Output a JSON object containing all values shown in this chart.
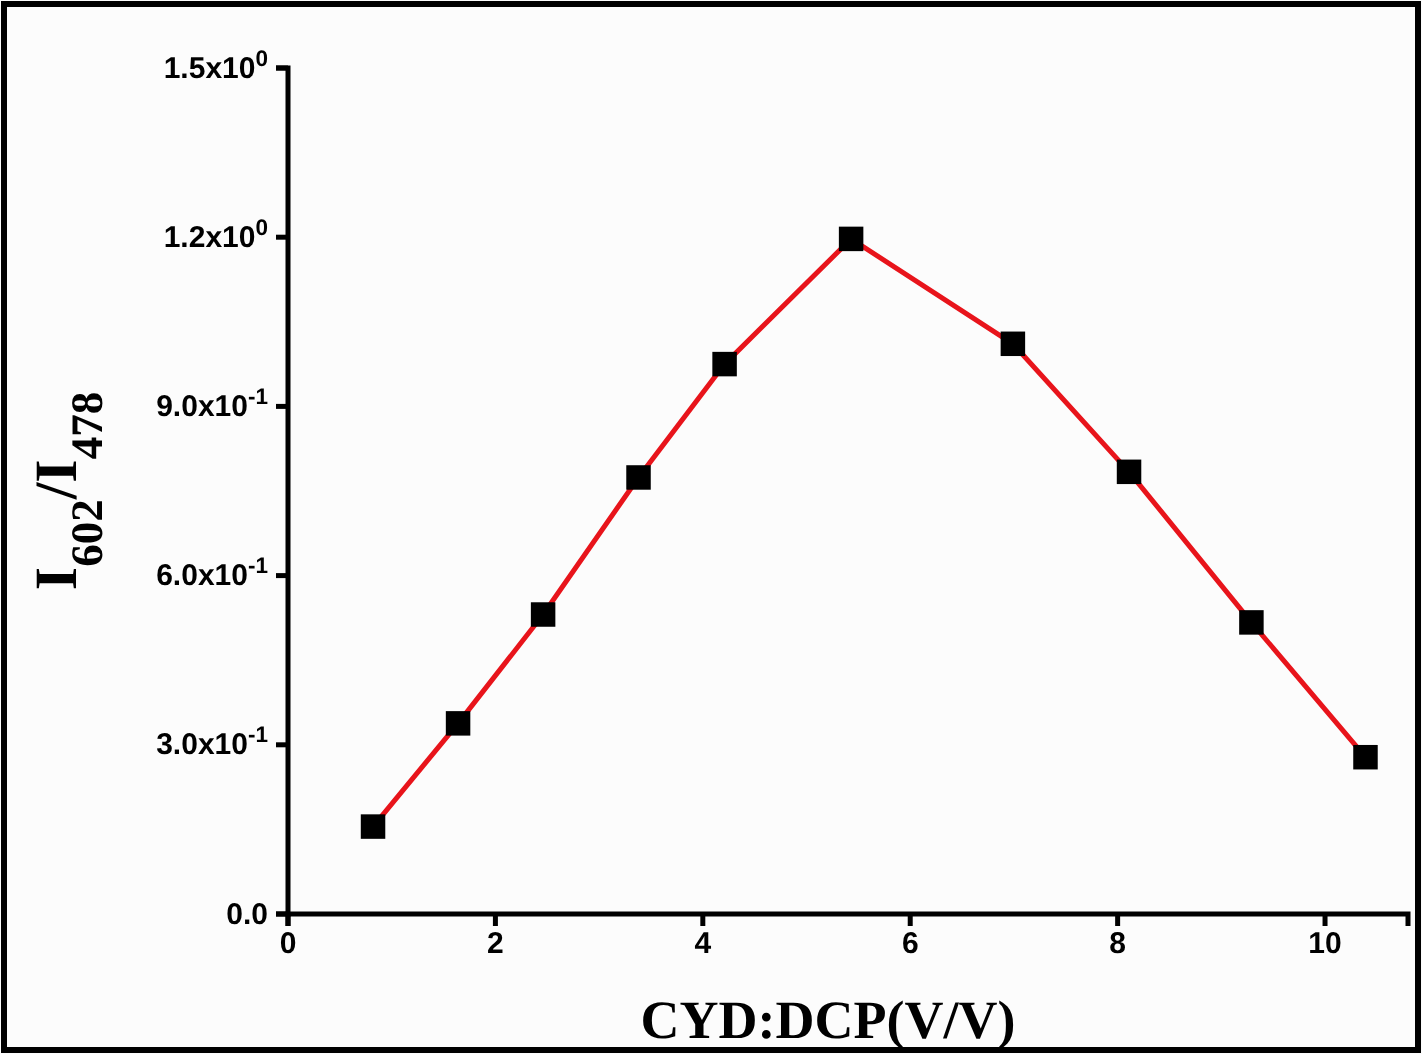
{
  "chart_data": {
    "type": "line",
    "xlabel": "CYD:DCP(V/V)",
    "ylabel": "I$_{602}$/I$_{478}$",
    "x": [
      0.82,
      1.64,
      2.46,
      3.38,
      4.21,
      5.43,
      6.99,
      8.11,
      9.29,
      10.39
    ],
    "series": [
      {
        "color": "#e8141b",
        "values": [
          0.155,
          0.338,
          0.531,
          0.774,
          0.975,
          1.197,
          1.011,
          0.784,
          0.517,
          0.278
        ]
      }
    ],
    "marker": "square",
    "line_style": "solid",
    "grid": false,
    "legend": false,
    "xlim": [
      0,
      10.8
    ],
    "xticks": [
      0,
      2,
      4,
      6,
      8,
      10
    ],
    "ylim": [
      0,
      1.5
    ],
    "yticks": [
      {
        "value": 0,
        "label": "0.0"
      },
      {
        "value": 0.3,
        "label": "3.0x10$^{-1}$"
      },
      {
        "value": 0.6,
        "label": "6.0x10$^{-1}$"
      },
      {
        "value": 0.9,
        "label": "9.0x10$^{-1}$"
      },
      {
        "value": 1.2,
        "label": "1.2x10$^{0}$"
      },
      {
        "value": 1.5,
        "label": "1.5x10$^{0}$"
      }
    ]
  }
}
